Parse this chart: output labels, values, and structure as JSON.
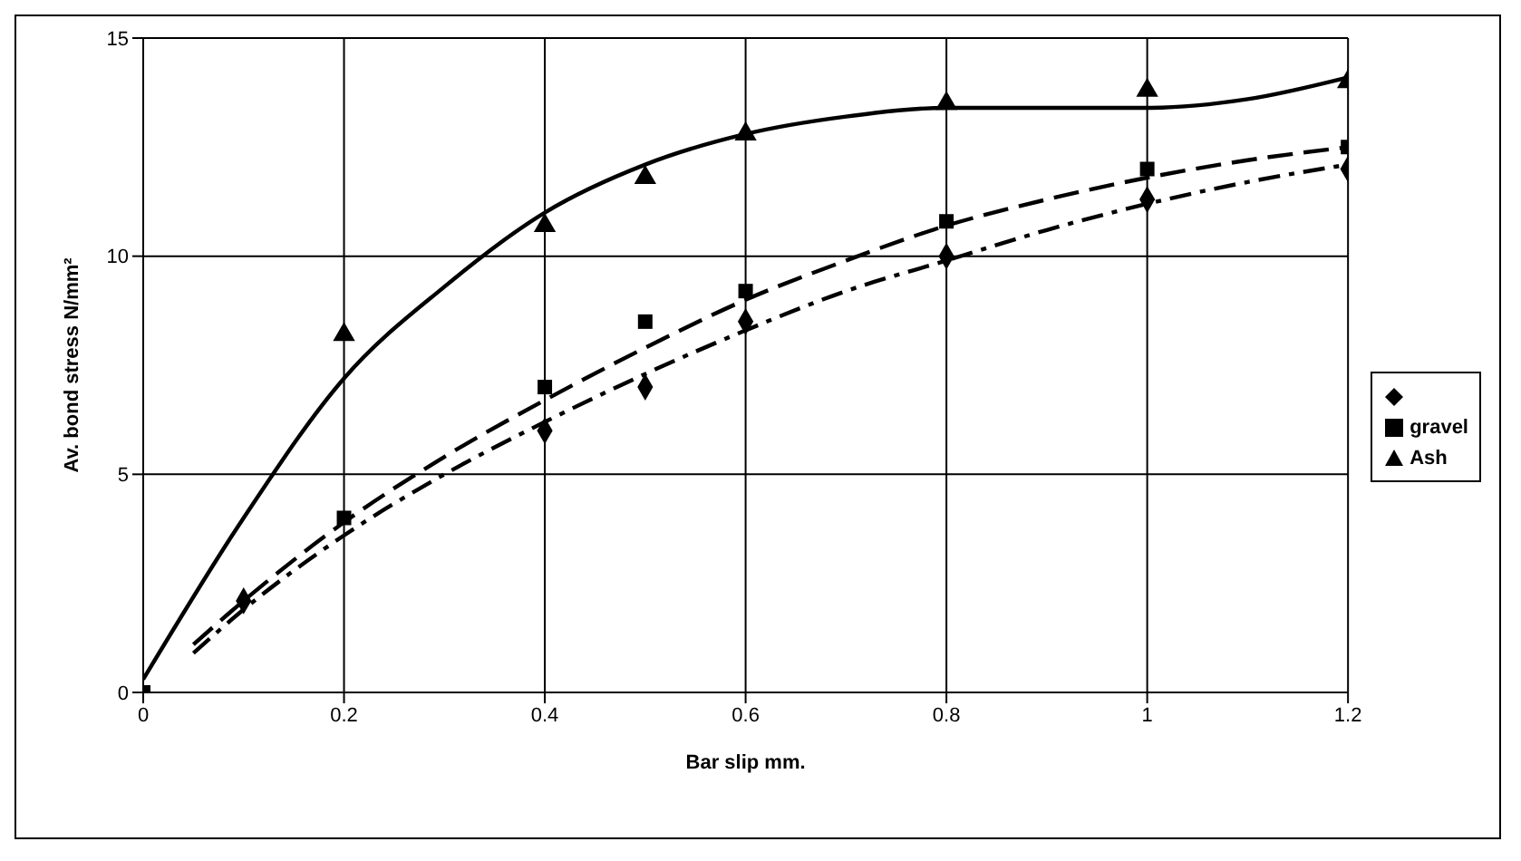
{
  "chart_data": {
    "type": "scatter",
    "xlabel": "Bar slip mm.",
    "ylabel": "Av. bond stress N/mm²",
    "xlim": [
      0,
      1.2
    ],
    "xticks": [
      0,
      0.2,
      0.4,
      0.6,
      0.8,
      1,
      1.2
    ],
    "ylim": [
      0,
      15
    ],
    "yticks": [
      0,
      5,
      10,
      15
    ],
    "grid": true,
    "legend": "right",
    "series": [
      {
        "color": "#000000",
        "marker": "diamond",
        "x": [
          0.1,
          0.4,
          0.5,
          0.6,
          0.8,
          1,
          1.2
        ],
        "values": [
          2.1,
          6,
          7,
          8.5,
          10,
          11.3,
          12
        ]
      },
      {
        "name": "gravel",
        "color": "#000000",
        "marker": "square",
        "x": [
          0,
          0.2,
          0.4,
          0.5,
          0.6,
          0.8,
          1,
          1.2
        ],
        "values": [
          0,
          4,
          7,
          8.5,
          9.2,
          10.8,
          12,
          12.5
        ]
      },
      {
        "name": "Ash",
        "color": "#000000",
        "marker": "triangle",
        "x": [
          0.2,
          0.4,
          0.5,
          0.6,
          0.8,
          1,
          1.2
        ],
        "values": [
          8.2,
          10.7,
          11.8,
          12.8,
          13.5,
          13.8,
          14
        ]
      },
      {
        "type": "line",
        "color": "#000000",
        "line_style": "dashdot",
        "marker": "none",
        "x": [
          0.05,
          0.1,
          0.2,
          0.3,
          0.4,
          0.5,
          0.6,
          0.7,
          0.8,
          0.9,
          1,
          1.1,
          1.2
        ],
        "values": [
          0.9,
          1.9,
          3.6,
          5,
          6.2,
          7.3,
          8.3,
          9.2,
          9.9,
          10.6,
          11.2,
          11.7,
          12.1
        ]
      },
      {
        "type": "line",
        "color": "#000000",
        "line_style": "dashed",
        "marker": "none",
        "x": [
          0.05,
          0.1,
          0.2,
          0.3,
          0.4,
          0.5,
          0.6,
          0.7,
          0.8,
          0.9,
          1,
          1.1,
          1.2
        ],
        "values": [
          1.1,
          2.1,
          3.9,
          5.4,
          6.7,
          7.9,
          9,
          9.9,
          10.7,
          11.3,
          11.8,
          12.2,
          12.5
        ]
      },
      {
        "type": "line",
        "color": "#000000",
        "line_style": "solid",
        "marker": "none",
        "x": [
          0,
          0.1,
          0.2,
          0.3,
          0.4,
          0.5,
          0.6,
          0.7,
          0.8,
          0.9,
          1,
          1.1,
          1.2
        ],
        "values": [
          0.3,
          4,
          7.2,
          9.3,
          11,
          12.1,
          12.8,
          13.2,
          13.4,
          13.4,
          13.4,
          13.6,
          14.1
        ]
      }
    ]
  }
}
